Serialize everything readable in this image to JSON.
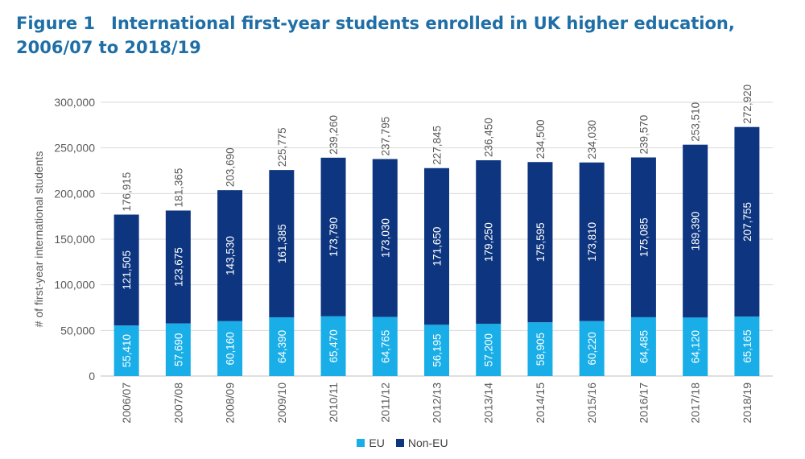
{
  "figure": {
    "label": "Figure 1",
    "title": "International first-year students enrolled in UK higher education, 2006/07 to 2018/19"
  },
  "chart_data": {
    "type": "bar",
    "stacked": true,
    "categories": [
      "2006/07",
      "2007/08",
      "2008/09",
      "2009/10",
      "2010/11",
      "2011/12",
      "2012/13",
      "2013/14",
      "2014/15",
      "2015/16",
      "2016/17",
      "2017/18",
      "2018/19"
    ],
    "series": [
      {
        "name": "EU",
        "color": "#19aee8",
        "values": [
          55410,
          57690,
          60160,
          64390,
          65470,
          64765,
          56195,
          57200,
          58905,
          60220,
          64485,
          64120,
          65165
        ],
        "labels": [
          "55,410",
          "57,690",
          "60,160",
          "64,390",
          "65,470",
          "64,765",
          "56,195",
          "57,200",
          "58,905",
          "60,220",
          "64,485",
          "64,120",
          "65,165"
        ]
      },
      {
        "name": "Non-EU",
        "color": "#0e3680",
        "values": [
          121505,
          123675,
          143530,
          161385,
          173790,
          173030,
          171650,
          179250,
          175595,
          173810,
          175085,
          189390,
          207755
        ],
        "labels": [
          "121,505",
          "123,675",
          "143,530",
          "161,385",
          "173,790",
          "173,030",
          "171,650",
          "179,250",
          "175,595",
          "173,810",
          "175,085",
          "189,390",
          "207,755"
        ]
      }
    ],
    "totals": [
      176915,
      181365,
      203690,
      225775,
      239260,
      237795,
      227845,
      236450,
      234500,
      234030,
      239570,
      253510,
      272920
    ],
    "total_labels": [
      "176,915",
      "181,365",
      "203,690",
      "225,775",
      "239,260",
      "237,795",
      "227,845",
      "236,450",
      "234,500",
      "234,030",
      "239,570",
      "253,510",
      "272,920"
    ],
    "ylabel": "# of first-year international students",
    "ylim": [
      0,
      300000
    ],
    "yticks": [
      0,
      50000,
      100000,
      150000,
      200000,
      250000,
      300000
    ],
    "ytick_labels": [
      "0",
      "50,000",
      "100,000",
      "150,000",
      "200,000",
      "250,000",
      "300,000"
    ],
    "grid": true,
    "legend_position": "bottom"
  }
}
